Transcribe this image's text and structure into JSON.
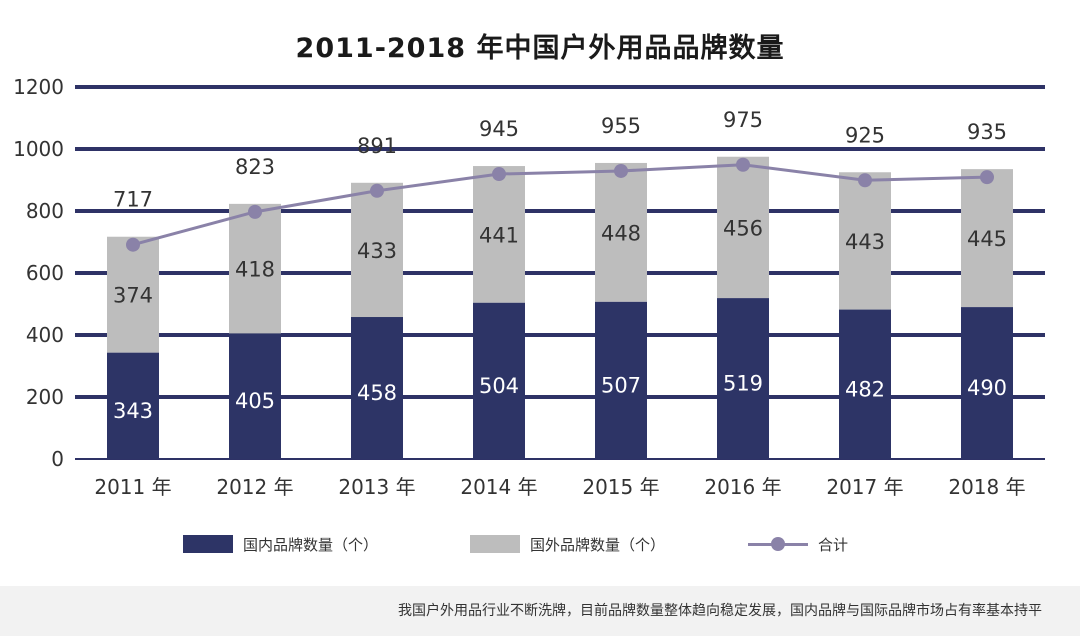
{
  "chart_data": {
    "type": "bar",
    "title": "2011-2018 年中国户外用品品牌数量",
    "categories": [
      "2011 年",
      "2012 年",
      "2013 年",
      "2014 年",
      "2015 年",
      "2016 年",
      "2017 年",
      "2018 年"
    ],
    "series": [
      {
        "name": "国内品牌数量（个）",
        "kind": "stacked-bar",
        "color": "#2d3466",
        "values": [
          343,
          405,
          458,
          504,
          507,
          519,
          482,
          490
        ]
      },
      {
        "name": "国外品牌数量（个）",
        "kind": "stacked-bar",
        "color": "#bdbdbd",
        "values": [
          374,
          418,
          433,
          441,
          448,
          456,
          443,
          445
        ]
      },
      {
        "name": "合计",
        "kind": "line",
        "color": "#8a82a8",
        "values": [
          717,
          823,
          891,
          945,
          955,
          975,
          925,
          935
        ]
      }
    ],
    "y_ticks": [
      "0",
      "200",
      "400",
      "600",
      "800",
      "1000",
      "1200"
    ],
    "ylim": [
      0,
      1200
    ],
    "grid": true,
    "legend_position": "bottom",
    "footnote": "我国户外用品行业不断洗牌，目前品牌数量整体趋向稳定发展，国内品牌与国际品牌市场占有率基本持平"
  }
}
